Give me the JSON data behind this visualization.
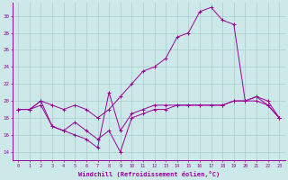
{
  "xlabel": "Windchill (Refroidissement éolien,°C)",
  "ylabel": "",
  "bg_color": "#cce8e8",
  "grid_color": "#aacccc",
  "line_color": "#990099",
  "xlim": [
    -0.5,
    23.5
  ],
  "ylim": [
    13.0,
    31.5
  ],
  "yticks": [
    14,
    16,
    18,
    20,
    22,
    24,
    26,
    28,
    30
  ],
  "xticks": [
    0,
    1,
    2,
    3,
    4,
    5,
    6,
    7,
    8,
    9,
    10,
    11,
    12,
    13,
    14,
    15,
    16,
    17,
    18,
    19,
    20,
    21,
    22,
    23
  ],
  "line1_x": [
    0,
    1,
    2,
    3,
    4,
    5,
    6,
    7,
    8,
    9,
    10,
    11,
    12,
    13,
    14,
    15,
    16,
    17,
    18,
    19,
    20,
    21,
    22,
    23
  ],
  "line1_y": [
    19.0,
    19.0,
    20.0,
    17.0,
    16.5,
    17.5,
    16.5,
    15.5,
    16.5,
    14.0,
    18.0,
    18.5,
    19.0,
    19.0,
    19.5,
    19.5,
    19.5,
    19.5,
    19.5,
    20.0,
    20.0,
    20.5,
    20.0,
    18.0
  ],
  "line2_x": [
    0,
    1,
    2,
    3,
    4,
    5,
    6,
    7,
    8,
    9,
    10,
    11,
    12,
    13,
    14,
    15,
    16,
    17,
    18,
    19,
    20,
    21,
    22,
    23
  ],
  "line2_y": [
    19.0,
    19.0,
    19.5,
    17.0,
    16.5,
    16.0,
    15.5,
    14.5,
    21.0,
    16.5,
    18.5,
    19.0,
    19.5,
    19.5,
    19.5,
    19.5,
    19.5,
    19.5,
    19.5,
    20.0,
    20.0,
    20.0,
    19.5,
    18.0
  ],
  "line3_x": [
    0,
    1,
    2,
    3,
    4,
    5,
    6,
    7,
    8,
    9,
    10,
    11,
    12,
    13,
    14,
    15,
    16,
    17,
    18,
    19,
    20,
    21,
    22,
    23
  ],
  "line3_y": [
    19.0,
    19.0,
    20.0,
    19.5,
    19.0,
    19.5,
    19.0,
    18.0,
    19.0,
    20.5,
    22.0,
    23.5,
    24.0,
    25.0,
    27.5,
    28.0,
    30.5,
    31.0,
    29.5,
    29.0,
    20.0,
    20.5,
    19.5,
    18.0
  ]
}
